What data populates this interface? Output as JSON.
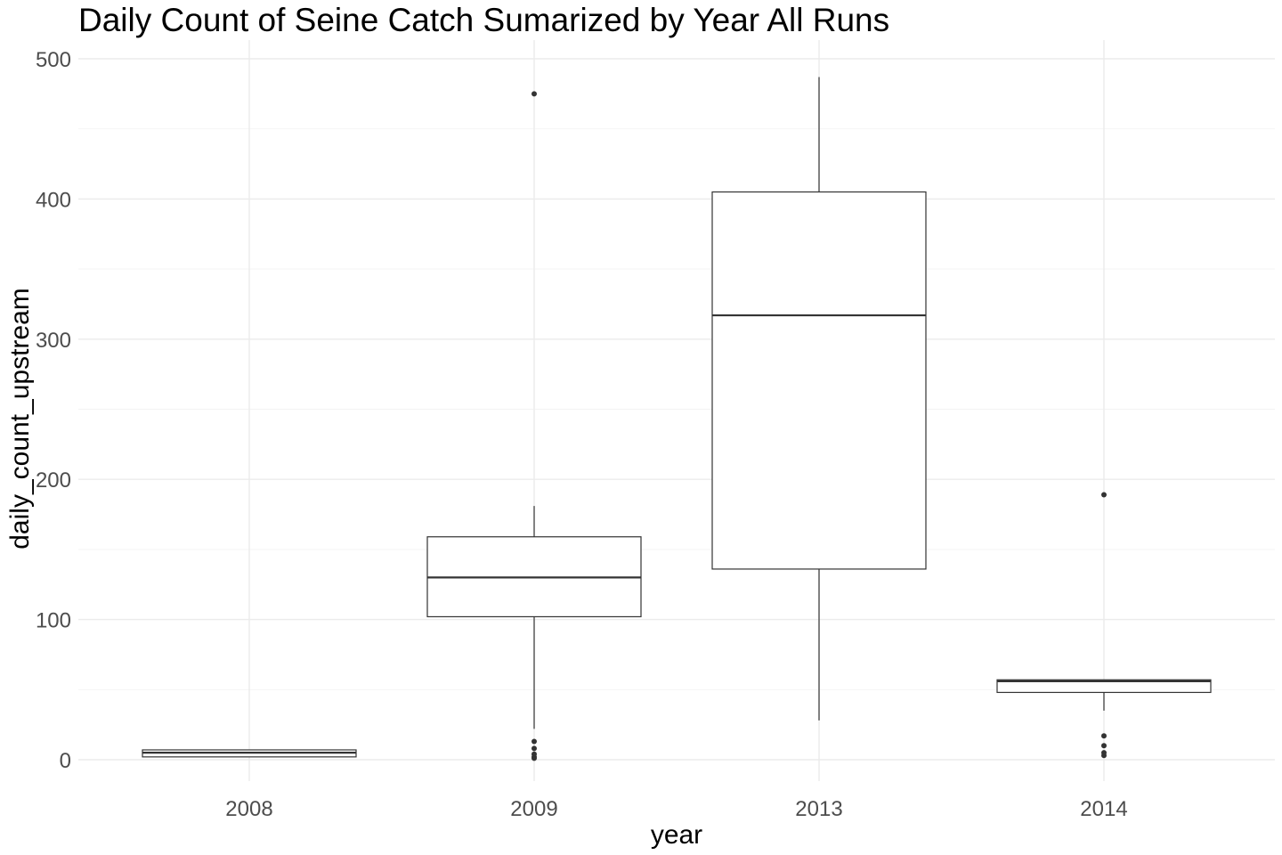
{
  "chart_data": {
    "type": "boxplot",
    "title": "Daily Count of Seine Catch Sumarized by Year All Runs",
    "xlabel": "year",
    "ylabel": "daily_count_upstream",
    "ylim": [
      -18,
      510
    ],
    "yticks": [
      0,
      100,
      200,
      300,
      400,
      500
    ],
    "grid": true,
    "categories": [
      "2008",
      "2009",
      "2013",
      "2014"
    ],
    "boxes": [
      {
        "category": "2008",
        "whisker_low": 2,
        "q1": 2,
        "median": 5,
        "q3": 7,
        "whisker_high": 7,
        "outliers": []
      },
      {
        "category": "2009",
        "whisker_low": 22,
        "q1": 102,
        "median": 130,
        "q3": 159,
        "whisker_high": 181,
        "outliers": [
          475,
          13,
          8,
          4,
          2,
          1
        ]
      },
      {
        "category": "2013",
        "whisker_low": 28,
        "q1": 136,
        "median": 317,
        "q3": 405,
        "whisker_high": 487,
        "outliers": []
      },
      {
        "category": "2014",
        "whisker_low": 35,
        "q1": 48,
        "median": 56,
        "q3": 57,
        "whisker_high": 57,
        "outliers": [
          189,
          17,
          10,
          5,
          3
        ]
      }
    ]
  }
}
